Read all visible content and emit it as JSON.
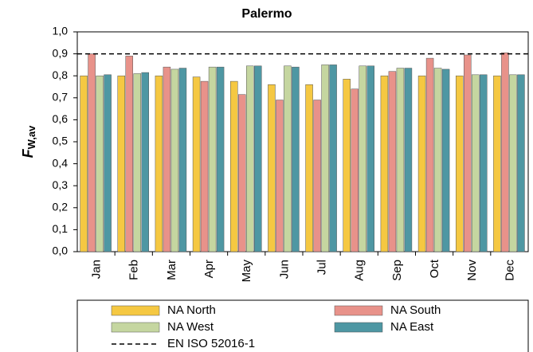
{
  "chart_data": {
    "type": "bar",
    "title": "Palermo",
    "ylabel": {
      "main": "F",
      "sub": "W,av"
    },
    "categories": [
      "Jan",
      "Feb",
      "Mar",
      "Apr",
      "May",
      "Jun",
      "Jul",
      "Aug",
      "Sep",
      "Oct",
      "Nov",
      "Dec"
    ],
    "series": [
      {
        "name": "NA North",
        "color": "#f5c842",
        "values": [
          0.8,
          0.8,
          0.8,
          0.795,
          0.775,
          0.76,
          0.76,
          0.785,
          0.8,
          0.8,
          0.8,
          0.8
        ]
      },
      {
        "name": "NA South",
        "color": "#e8928a",
        "values": [
          0.9,
          0.89,
          0.84,
          0.775,
          0.715,
          0.69,
          0.69,
          0.74,
          0.82,
          0.88,
          0.895,
          0.905
        ]
      },
      {
        "name": "NA West",
        "color": "#c5d6a0",
        "values": [
          0.8,
          0.81,
          0.83,
          0.84,
          0.845,
          0.845,
          0.85,
          0.845,
          0.835,
          0.835,
          0.805,
          0.805
        ]
      },
      {
        "name": "NA East",
        "color": "#4e97a3",
        "values": [
          0.805,
          0.815,
          0.835,
          0.84,
          0.845,
          0.84,
          0.85,
          0.845,
          0.835,
          0.83,
          0.805,
          0.805
        ]
      }
    ],
    "refline": {
      "value": 0.9,
      "label": "EN ISO 52016-1"
    },
    "ylim": [
      0,
      1
    ],
    "yticks": [
      {
        "value": 0,
        "label": "0,0"
      },
      {
        "value": 0.1,
        "label": "0,1"
      },
      {
        "value": 0.2,
        "label": "0,2"
      },
      {
        "value": 0.3,
        "label": "0,3"
      },
      {
        "value": 0.4,
        "label": "0,4"
      },
      {
        "value": 0.5,
        "label": "0,5"
      },
      {
        "value": 0.6,
        "label": "0,6"
      },
      {
        "value": 0.7,
        "label": "0,7"
      },
      {
        "value": 0.8,
        "label": "0,8"
      },
      {
        "value": 0.9,
        "label": "0,9"
      },
      {
        "value": 1,
        "label": "1,0"
      }
    ],
    "grid": false,
    "legend": "bottom"
  }
}
